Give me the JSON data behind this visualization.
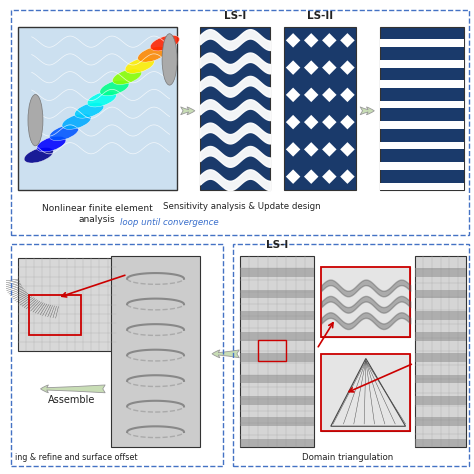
{
  "bg_color": "#ffffff",
  "dashed_border_color": "#4472c4",
  "arrow_color": "#c8ddb5",
  "arrow_edge_color": "#aaaaaa",
  "red_color": "#cc0000",
  "blue_dark": "#1a3a6b",
  "label_top_left": "Nonlinear finite element\nanalysis",
  "label_ls1": "LS-I",
  "label_ls2": "LS-II",
  "label_sensitivity": "Sensitivity analysis & Update design",
  "label_loop": "loop until convergence",
  "label_assemble": "Assemble",
  "label_bottom_text": "ing & refine and surface offset",
  "label_domain": "Domain triangulation",
  "label_ls1_bottom": "LS-I",
  "fig_width": 4.74,
  "fig_height": 4.74,
  "dpi": 100
}
